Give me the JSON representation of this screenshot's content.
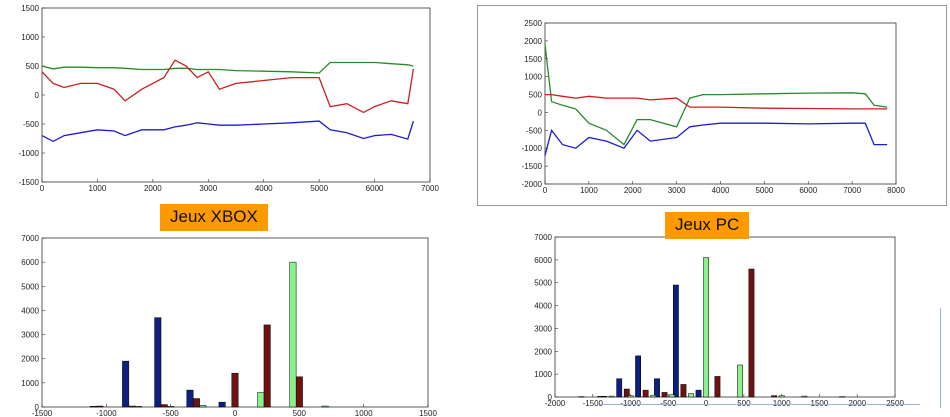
{
  "labels": {
    "xbox": "Jeux XBOX",
    "pc": "Jeux PC"
  },
  "colors": {
    "series_a": "#1c1ccf",
    "series_b": "#cc1f1f",
    "series_c": "#2a8a2a",
    "bar_a": "#0d1f80",
    "bar_b": "#6e1212",
    "bar_c": "#8cf08c"
  },
  "chart_data": [
    {
      "type": "line",
      "xlim": [
        0,
        7000
      ],
      "ylim": [
        -1500,
        1500
      ],
      "xticks": [
        "0",
        "1000",
        "2000",
        "3000",
        "4000",
        "5000",
        "6000",
        "7000"
      ],
      "yticks": [
        "1500",
        "1000",
        "500",
        "0",
        "-500",
        "-1000",
        "-1500"
      ],
      "x": [
        0,
        200,
        400,
        700,
        1000,
        1300,
        1500,
        1800,
        2200,
        2400,
        2600,
        2800,
        3000,
        3200,
        3500,
        4000,
        4500,
        5000,
        5200,
        5500,
        5800,
        6000,
        6300,
        6600,
        6700
      ],
      "series": [
        {
          "values": [
            500,
            450,
            480,
            480,
            470,
            470,
            460,
            440,
            440,
            460,
            460,
            440,
            440,
            440,
            420,
            410,
            400,
            380,
            560,
            560,
            560,
            560,
            540,
            520,
            500
          ]
        },
        {
          "values": [
            400,
            200,
            130,
            200,
            200,
            100,
            -100,
            100,
            300,
            600,
            500,
            300,
            400,
            100,
            200,
            250,
            300,
            300,
            -200,
            -150,
            -300,
            -200,
            -100,
            -150,
            450
          ]
        },
        {
          "values": [
            -700,
            -800,
            -700,
            -650,
            -600,
            -620,
            -700,
            -600,
            -600,
            -550,
            -520,
            -480,
            -500,
            -520,
            -520,
            -500,
            -480,
            -450,
            -600,
            -650,
            -750,
            -700,
            -680,
            -760,
            -450
          ]
        }
      ]
    },
    {
      "type": "line",
      "xlim": [
        0,
        8000
      ],
      "ylim": [
        -2000,
        2500
      ],
      "xticks": [
        "0",
        "1000",
        "2000",
        "3000",
        "4000",
        "5000",
        "6000",
        "7000",
        "8000"
      ],
      "yticks": [
        "2500",
        "2000",
        "1500",
        "1000",
        "500",
        "0",
        "-500",
        "-1000",
        "-1500",
        "-2000"
      ],
      "x": [
        0,
        150,
        400,
        700,
        1000,
        1400,
        1800,
        2100,
        2400,
        3000,
        3300,
        3600,
        4000,
        5000,
        6000,
        7000,
        7300,
        7500,
        7800
      ],
      "series": [
        {
          "values": [
            1900,
            300,
            200,
            100,
            -300,
            -500,
            -900,
            -200,
            -200,
            -400,
            400,
            500,
            500,
            520,
            540,
            550,
            520,
            200,
            150
          ]
        },
        {
          "values": [
            500,
            500,
            450,
            400,
            450,
            400,
            400,
            400,
            350,
            400,
            150,
            150,
            150,
            120,
            110,
            100,
            100,
            100,
            100
          ]
        },
        {
          "values": [
            -1200,
            -500,
            -900,
            -1000,
            -700,
            -800,
            -1000,
            -500,
            -800,
            -700,
            -400,
            -350,
            -300,
            -300,
            -320,
            -300,
            -300,
            -900,
            -900
          ]
        }
      ]
    },
    {
      "type": "bar",
      "xlim": [
        -1500,
        1500
      ],
      "ylim": [
        0,
        7000
      ],
      "xticks": [
        "-1500",
        "-1000",
        "-500",
        "0",
        "500",
        "1000",
        "1500"
      ],
      "yticks": [
        "7000",
        "6000",
        "5000",
        "4000",
        "3000",
        "2000",
        "1000",
        "0"
      ],
      "bar_width": 50,
      "series": [
        {
          "x": [
            -1100,
            -850,
            -600,
            -350,
            -100
          ],
          "values": [
            30,
            1900,
            3700,
            700,
            200
          ]
        },
        {
          "x": [
            -1050,
            -800,
            -550,
            -300,
            0,
            250,
            500
          ],
          "values": [
            40,
            40,
            100,
            350,
            1400,
            3400,
            1250
          ]
        },
        {
          "x": [
            -750,
            -500,
            -250,
            200,
            450,
            700
          ],
          "values": [
            30,
            30,
            70,
            600,
            6000,
            40
          ]
        }
      ]
    },
    {
      "type": "bar",
      "xlim": [
        -2000,
        2500
      ],
      "ylim": [
        0,
        7000
      ],
      "xticks": [
        "-2000",
        "-1500",
        "-1000",
        "-500",
        "0",
        "500",
        "1000",
        "1500",
        "2000",
        "2500"
      ],
      "yticks": [
        "7000",
        "6000",
        "5000",
        "4000",
        "3000",
        "2000",
        "1000",
        "0"
      ],
      "bar_width": 70,
      "series": [
        {
          "x": [
            -1400,
            -1150,
            -900,
            -650,
            -400,
            -100
          ],
          "values": [
            30,
            800,
            1800,
            800,
            4900,
            300
          ]
        },
        {
          "x": [
            -1350,
            -1050,
            -800,
            -550,
            -300,
            150,
            600,
            900
          ],
          "values": [
            30,
            350,
            300,
            200,
            550,
            900,
            5600,
            60
          ]
        },
        {
          "x": [
            -1650,
            -1250,
            -1000,
            -700,
            -450,
            -200,
            0,
            450,
            1000,
            1300,
            1800
          ],
          "values": [
            20,
            40,
            60,
            80,
            100,
            150,
            6100,
            1400,
            60,
            40,
            20
          ]
        }
      ]
    }
  ]
}
